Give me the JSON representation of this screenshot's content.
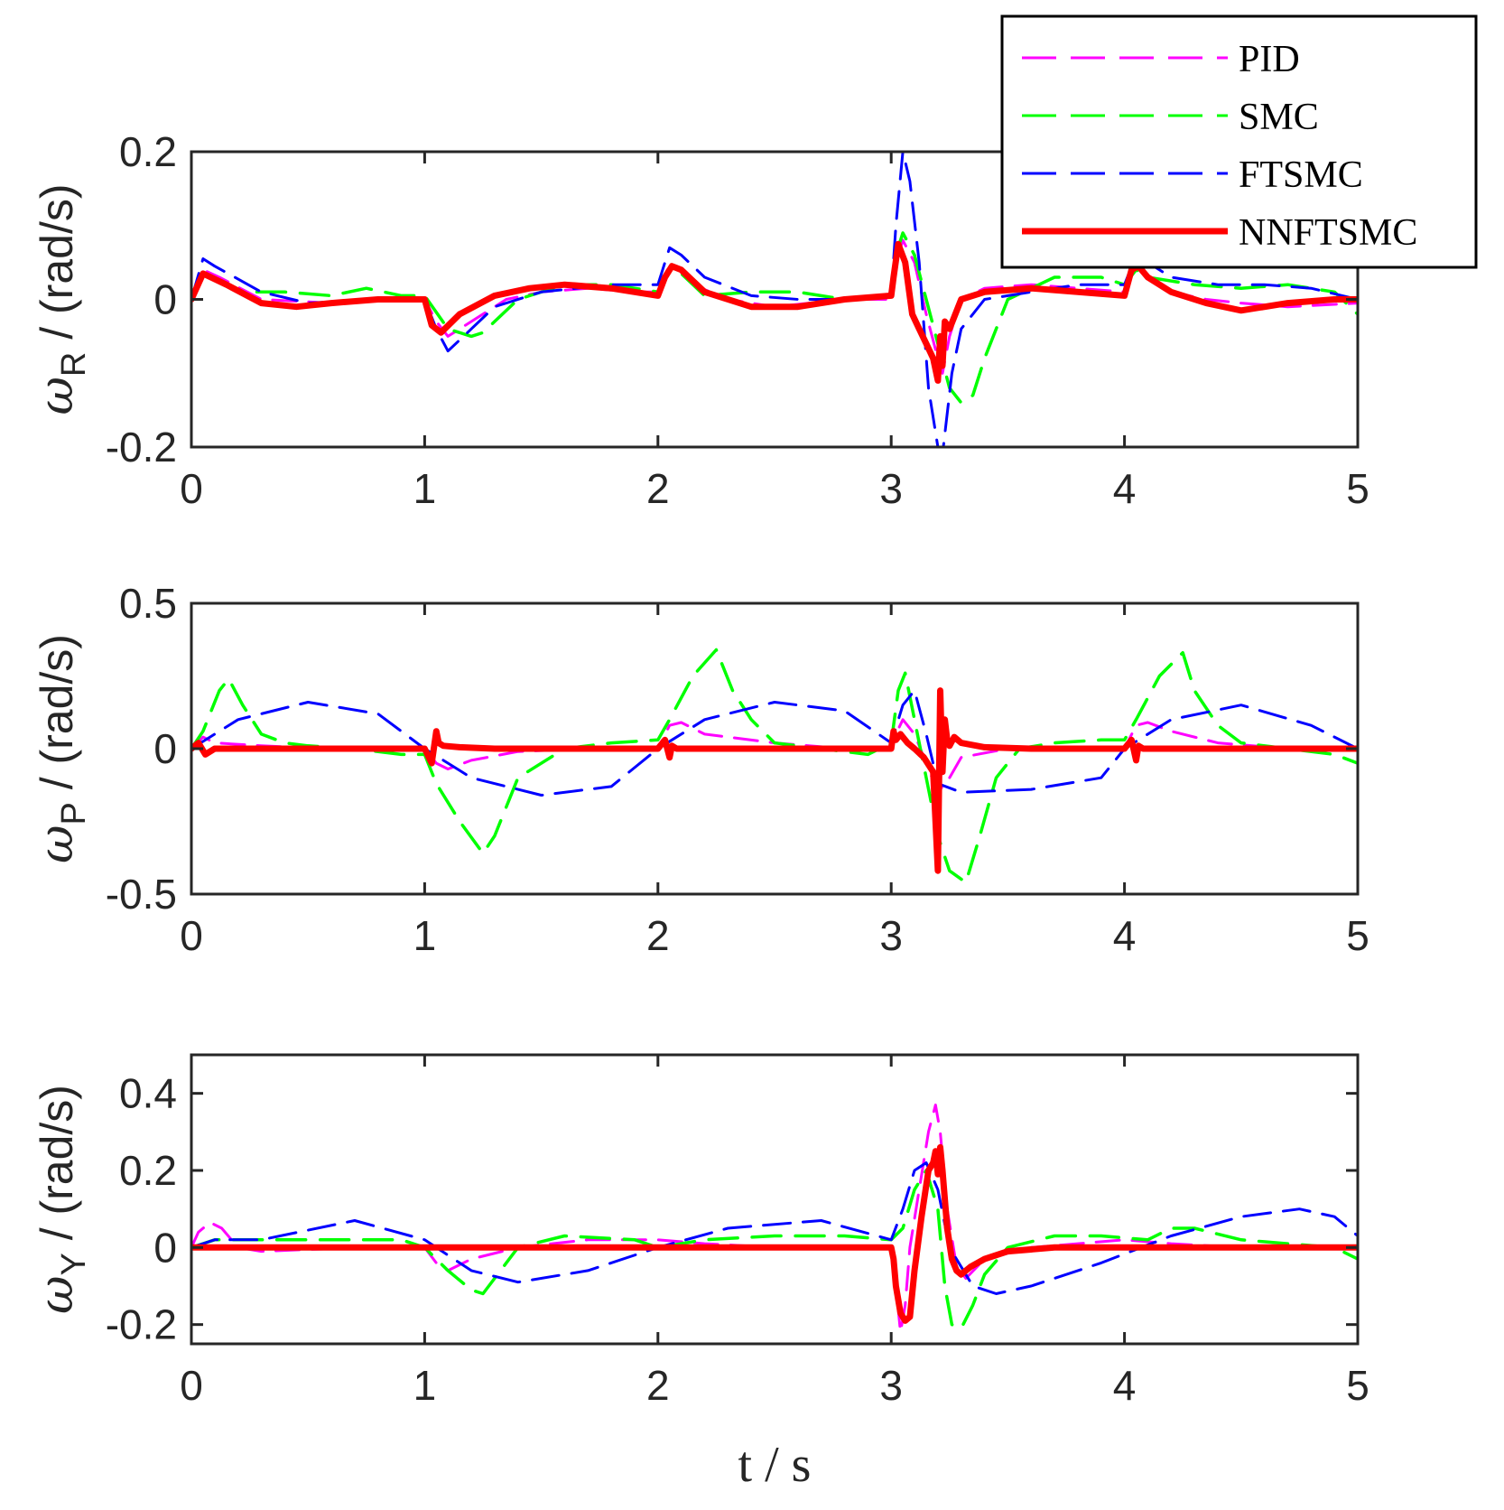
{
  "chart_data": [
    {
      "type": "line",
      "id": "roll",
      "ylabel": {
        "symbol": "ω",
        "sub": "R",
        "unit": " / (rad/s)"
      },
      "xlabel": "",
      "xlim": [
        0,
        5
      ],
      "ylim": [
        -0.2,
        0.2
      ],
      "xticks": [
        0,
        1,
        2,
        3,
        4,
        5
      ],
      "yticks": [
        -0.2,
        0,
        0.2
      ],
      "ytick_labels": [
        "-0.2",
        "0",
        "0.2"
      ],
      "series": [
        {
          "name": "PID",
          "x": [
            0,
            0.05,
            0.12,
            0.3,
            0.6,
            0.9,
            1.0,
            1.05,
            1.1,
            1.2,
            1.35,
            1.5,
            1.7,
            1.9,
            2.0,
            2.04,
            2.08,
            2.15,
            2.3,
            2.5,
            2.8,
            3.0,
            3.02,
            3.05,
            3.1,
            3.15,
            3.2,
            3.22,
            3.25,
            3.3,
            3.4,
            3.6,
            3.8,
            4.0,
            4.05,
            4.1,
            4.2,
            4.35,
            4.5,
            4.7,
            5.0
          ],
          "values": [
            0,
            0.04,
            0.03,
            0.0,
            -0.005,
            0.0,
            0.0,
            -0.03,
            -0.05,
            -0.03,
            0.0,
            0.01,
            0.015,
            0.01,
            0.01,
            0.04,
            0.045,
            0.02,
            0.0,
            -0.01,
            0.0,
            0.0,
            0.05,
            0.08,
            0.05,
            -0.02,
            -0.08,
            -0.1,
            -0.05,
            0.0,
            0.015,
            0.02,
            0.015,
            0.01,
            0.045,
            0.03,
            0.01,
            0.0,
            -0.005,
            -0.01,
            -0.005
          ]
        },
        {
          "name": "SMC",
          "x": [
            0,
            0.05,
            0.2,
            0.4,
            0.6,
            0.75,
            0.9,
            1.0,
            1.1,
            1.2,
            1.25,
            1.3,
            1.4,
            1.6,
            1.8,
            2.0,
            2.05,
            2.1,
            2.2,
            2.4,
            2.6,
            2.8,
            3.0,
            3.02,
            3.05,
            3.1,
            3.15,
            3.2,
            3.25,
            3.3,
            3.35,
            3.4,
            3.5,
            3.7,
            3.9,
            4.0,
            4.05,
            4.1,
            4.3,
            4.5,
            4.7,
            4.9,
            5.0
          ],
          "values": [
            0,
            0.035,
            0.01,
            0.01,
            0.005,
            0.015,
            0.005,
            0.005,
            -0.04,
            -0.05,
            -0.045,
            -0.03,
            0.0,
            0.02,
            0.02,
            0.01,
            0.04,
            0.035,
            0.005,
            0.01,
            0.01,
            0.0,
            0.005,
            0.06,
            0.09,
            0.06,
            0.0,
            -0.06,
            -0.12,
            -0.14,
            -0.13,
            -0.08,
            0.0,
            0.03,
            0.03,
            0.02,
            0.04,
            0.03,
            0.02,
            0.015,
            0.02,
            0.01,
            -0.02
          ]
        },
        {
          "name": "FTSMC",
          "x": [
            0,
            0.05,
            0.1,
            0.3,
            0.5,
            0.8,
            1.0,
            1.05,
            1.1,
            1.2,
            1.3,
            1.5,
            1.8,
            2.0,
            2.05,
            2.1,
            2.2,
            2.4,
            2.6,
            2.8,
            3.0,
            3.02,
            3.05,
            3.08,
            3.12,
            3.16,
            3.2,
            3.22,
            3.26,
            3.3,
            3.4,
            3.6,
            3.8,
            4.0,
            4.05,
            4.1,
            4.2,
            4.4,
            4.6,
            4.8,
            5.0
          ],
          "values": [
            0,
            0.055,
            0.045,
            0.01,
            -0.005,
            0.0,
            0.0,
            -0.04,
            -0.07,
            -0.04,
            -0.01,
            0.01,
            0.02,
            0.02,
            0.07,
            0.06,
            0.03,
            0.005,
            0.0,
            0.0,
            0.005,
            0.1,
            0.2,
            0.16,
            0.05,
            -0.12,
            -0.2,
            -0.21,
            -0.1,
            -0.04,
            0.0,
            0.01,
            0.02,
            0.02,
            0.06,
            0.05,
            0.03,
            0.02,
            0.02,
            0.015,
            0.0
          ]
        },
        {
          "name": "NNFTSMC",
          "x": [
            0,
            0.05,
            0.15,
            0.3,
            0.45,
            0.6,
            0.8,
            1.0,
            1.03,
            1.07,
            1.15,
            1.3,
            1.45,
            1.6,
            1.8,
            2.0,
            2.03,
            2.06,
            2.1,
            2.2,
            2.4,
            2.6,
            2.8,
            3.0,
            3.01,
            3.03,
            3.06,
            3.09,
            3.12,
            3.15,
            3.18,
            3.2,
            3.21,
            3.22,
            3.23,
            3.25,
            3.3,
            3.4,
            3.6,
            3.8,
            4.0,
            4.03,
            4.06,
            4.1,
            4.2,
            4.35,
            4.5,
            4.7,
            4.9,
            5.0
          ],
          "values": [
            0,
            0.035,
            0.02,
            -0.005,
            -0.01,
            -0.005,
            0.0,
            0.0,
            -0.035,
            -0.045,
            -0.02,
            0.005,
            0.015,
            0.02,
            0.015,
            0.005,
            0.03,
            0.045,
            0.04,
            0.01,
            -0.01,
            -0.01,
            0.0,
            0.005,
            0.03,
            0.075,
            0.05,
            -0.02,
            -0.04,
            -0.06,
            -0.08,
            -0.11,
            -0.05,
            -0.09,
            -0.03,
            -0.04,
            0.0,
            0.01,
            0.015,
            0.01,
            0.005,
            0.04,
            0.045,
            0.03,
            0.01,
            -0.005,
            -0.015,
            -0.005,
            0.0,
            0.0
          ]
        }
      ]
    },
    {
      "type": "line",
      "id": "pitch",
      "ylabel": {
        "symbol": "ω",
        "sub": "P",
        "unit": " / (rad/s)"
      },
      "xlabel": "",
      "xlim": [
        0,
        5
      ],
      "ylim": [
        -0.5,
        0.5
      ],
      "xticks": [
        0,
        1,
        2,
        3,
        4,
        5
      ],
      "yticks": [
        -0.5,
        0,
        0.5
      ],
      "ytick_labels": [
        "-0.5",
        "0",
        "0.5"
      ],
      "series": [
        {
          "name": "PID",
          "x": [
            0,
            0.05,
            0.1,
            0.3,
            0.6,
            0.9,
            1.0,
            1.05,
            1.1,
            1.2,
            1.4,
            1.7,
            2.0,
            2.05,
            2.1,
            2.2,
            2.5,
            2.8,
            3.0,
            3.02,
            3.05,
            3.1,
            3.15,
            3.2,
            3.25,
            3.3,
            3.5,
            3.8,
            4.0,
            4.05,
            4.1,
            4.2,
            4.4,
            4.7,
            5.0
          ],
          "values": [
            0,
            0.04,
            0.02,
            0.01,
            0.0,
            0.0,
            0.0,
            -0.05,
            -0.07,
            -0.04,
            -0.01,
            0.0,
            0.0,
            0.08,
            0.09,
            0.05,
            0.02,
            0.0,
            0.0,
            0.05,
            0.1,
            0.05,
            -0.05,
            -0.15,
            -0.1,
            -0.03,
            0.0,
            0.0,
            0.0,
            0.08,
            0.09,
            0.06,
            0.02,
            0.0,
            0.0
          ]
        },
        {
          "name": "SMC",
          "x": [
            0,
            0.05,
            0.12,
            0.16,
            0.22,
            0.3,
            0.4,
            0.5,
            0.7,
            0.9,
            1.0,
            1.05,
            1.15,
            1.25,
            1.3,
            1.4,
            1.6,
            1.8,
            2.0,
            2.05,
            2.15,
            2.25,
            2.32,
            2.4,
            2.5,
            2.7,
            2.9,
            3.0,
            3.03,
            3.06,
            3.1,
            3.15,
            3.2,
            3.25,
            3.32,
            3.38,
            3.45,
            3.55,
            3.7,
            3.9,
            4.0,
            4.05,
            4.15,
            4.25,
            4.3,
            4.4,
            4.5,
            4.7,
            4.9,
            5.0
          ],
          "values": [
            0,
            0.06,
            0.2,
            0.24,
            0.15,
            0.05,
            0.02,
            0.01,
            0.0,
            -0.02,
            -0.02,
            -0.12,
            -0.25,
            -0.36,
            -0.3,
            -0.1,
            0.0,
            0.02,
            0.03,
            0.1,
            0.25,
            0.34,
            0.2,
            0.1,
            0.02,
            0.0,
            -0.02,
            0.02,
            0.2,
            0.26,
            0.1,
            -0.1,
            -0.3,
            -0.42,
            -0.46,
            -0.3,
            -0.1,
            0.0,
            0.02,
            0.03,
            0.03,
            0.1,
            0.25,
            0.33,
            0.2,
            0.08,
            0.02,
            0.0,
            -0.02,
            -0.05
          ]
        },
        {
          "name": "FTSMC",
          "x": [
            0,
            0.2,
            0.5,
            0.8,
            1.0,
            1.2,
            1.5,
            1.8,
            2.0,
            2.2,
            2.5,
            2.8,
            3.0,
            3.05,
            3.1,
            3.15,
            3.2,
            3.3,
            3.6,
            3.9,
            4.0,
            4.2,
            4.5,
            4.8,
            5.0
          ],
          "values": [
            0,
            0.1,
            0.16,
            0.12,
            0.0,
            -0.1,
            -0.16,
            -0.13,
            0.0,
            0.1,
            0.16,
            0.13,
            0.02,
            0.15,
            0.2,
            0.05,
            -0.12,
            -0.15,
            -0.14,
            -0.1,
            0.0,
            0.1,
            0.15,
            0.08,
            0.0
          ]
        },
        {
          "name": "NNFTSMC",
          "x": [
            0,
            0.03,
            0.06,
            0.1,
            0.5,
            1.0,
            1.03,
            1.05,
            1.06,
            1.08,
            1.15,
            1.3,
            1.6,
            2.0,
            2.03,
            2.05,
            2.06,
            2.08,
            2.2,
            2.6,
            3.0,
            3.01,
            3.02,
            3.04,
            3.07,
            3.1,
            3.14,
            3.18,
            3.2,
            3.21,
            3.22,
            3.23,
            3.24,
            3.25,
            3.27,
            3.3,
            3.4,
            3.6,
            4.0,
            4.03,
            4.05,
            4.06,
            4.08,
            4.2,
            4.6,
            5.0
          ],
          "values": [
            0,
            0.02,
            -0.02,
            0.0,
            0.0,
            0.0,
            -0.05,
            0.06,
            0.02,
            0.01,
            0.005,
            0.0,
            0.0,
            0.0,
            0.03,
            -0.03,
            0.01,
            0.0,
            0.0,
            0.0,
            0.0,
            0.06,
            0.03,
            0.05,
            0.02,
            0.0,
            -0.03,
            -0.08,
            -0.42,
            0.2,
            -0.08,
            0.1,
            0.03,
            0.01,
            0.04,
            0.02,
            0.005,
            0.0,
            0.0,
            0.03,
            -0.04,
            0.01,
            0.0,
            0.0,
            0.0,
            0.0
          ]
        }
      ]
    },
    {
      "type": "line",
      "id": "yaw",
      "ylabel": {
        "symbol": "ω",
        "sub": "Y",
        "unit": " / (rad/s)"
      },
      "xlabel": "t / s",
      "xlim": [
        0,
        5
      ],
      "ylim": [
        -0.25,
        0.5
      ],
      "xticks": [
        0,
        1,
        2,
        3,
        4,
        5
      ],
      "yticks": [
        -0.2,
        0,
        0.2,
        0.4
      ],
      "ytick_labels": [
        "-0.2",
        "0",
        "0.2",
        "0.4"
      ],
      "series": [
        {
          "name": "PID",
          "x": [
            0,
            0.03,
            0.08,
            0.13,
            0.2,
            0.3,
            0.5,
            0.8,
            1.0,
            1.05,
            1.1,
            1.2,
            1.4,
            1.7,
            2.0,
            2.2,
            2.5,
            2.8,
            3.0,
            3.02,
            3.04,
            3.06,
            3.08,
            3.12,
            3.16,
            3.19,
            3.21,
            3.24,
            3.28,
            3.32,
            3.4,
            3.6,
            3.8,
            4.0,
            4.2,
            4.5,
            4.8,
            5.0
          ],
          "values": [
            0,
            0.04,
            0.065,
            0.05,
            0.0,
            -0.01,
            -0.005,
            0.0,
            0.0,
            -0.04,
            -0.06,
            -0.03,
            0.0,
            0.02,
            0.02,
            0.01,
            0.0,
            0.0,
            0.0,
            -0.1,
            -0.22,
            -0.15,
            0.0,
            0.15,
            0.3,
            0.37,
            0.3,
            0.1,
            -0.05,
            -0.08,
            -0.03,
            0.0,
            0.01,
            0.02,
            0.01,
            0.0,
            0.0,
            0.0
          ]
        },
        {
          "name": "SMC",
          "x": [
            0,
            0.1,
            0.3,
            0.6,
            0.9,
            1.0,
            1.1,
            1.2,
            1.25,
            1.3,
            1.4,
            1.6,
            1.9,
            2.0,
            2.2,
            2.5,
            2.8,
            3.0,
            3.05,
            3.1,
            3.15,
            3.2,
            3.23,
            3.26,
            3.3,
            3.35,
            3.4,
            3.5,
            3.7,
            3.9,
            4.1,
            4.2,
            4.3,
            4.5,
            4.7,
            4.9,
            5.0
          ],
          "values": [
            0,
            0.02,
            0.02,
            0.02,
            0.02,
            0.0,
            -0.06,
            -0.11,
            -0.12,
            -0.08,
            0.0,
            0.03,
            0.02,
            0.0,
            0.02,
            0.03,
            0.03,
            0.02,
            0.05,
            0.15,
            0.2,
            0.1,
            -0.1,
            -0.2,
            -0.21,
            -0.15,
            -0.07,
            0.0,
            0.03,
            0.03,
            0.02,
            0.05,
            0.05,
            0.02,
            0.01,
            0.0,
            -0.03
          ]
        },
        {
          "name": "FTSMC",
          "x": [
            0,
            0.1,
            0.3,
            0.7,
            1.0,
            1.2,
            1.4,
            1.7,
            2.0,
            2.3,
            2.7,
            3.0,
            3.05,
            3.1,
            3.15,
            3.2,
            3.25,
            3.3,
            3.35,
            3.45,
            3.6,
            3.9,
            4.2,
            4.5,
            4.75,
            4.9,
            5.0
          ],
          "values": [
            0,
            0.02,
            0.02,
            0.07,
            0.02,
            -0.06,
            -0.09,
            -0.06,
            0.0,
            0.05,
            0.07,
            0.02,
            0.1,
            0.2,
            0.22,
            0.15,
            0.0,
            -0.05,
            -0.1,
            -0.12,
            -0.1,
            -0.04,
            0.03,
            0.08,
            0.1,
            0.08,
            0.03
          ]
        },
        {
          "name": "NNFTSMC",
          "x": [
            0,
            0.5,
            1.0,
            1.5,
            2.0,
            2.5,
            3.0,
            3.01,
            3.02,
            3.04,
            3.06,
            3.08,
            3.1,
            3.13,
            3.16,
            3.18,
            3.19,
            3.2,
            3.21,
            3.22,
            3.24,
            3.26,
            3.28,
            3.3,
            3.34,
            3.4,
            3.5,
            3.7,
            4.0,
            4.5,
            5.0
          ],
          "values": [
            0,
            0.0,
            0.0,
            0.0,
            0.0,
            0.0,
            0.0,
            -0.03,
            -0.1,
            -0.17,
            -0.19,
            -0.18,
            -0.06,
            0.08,
            0.2,
            0.22,
            0.25,
            0.19,
            0.26,
            0.2,
            0.05,
            -0.03,
            -0.06,
            -0.07,
            -0.05,
            -0.03,
            -0.01,
            0.0,
            0.0,
            0.0,
            0.0
          ]
        }
      ]
    }
  ],
  "legend": {
    "placement": "top-right",
    "entries": [
      {
        "label": "PID",
        "color": "#ff00ff",
        "style": "dashed"
      },
      {
        "label": "SMC",
        "color": "#00ff00",
        "style": "dashed"
      },
      {
        "label": "FTSMC",
        "color": "#0000ff",
        "style": "dashed"
      },
      {
        "label": "NNFTSMC",
        "color": "#ff0000",
        "style": "solid"
      }
    ]
  },
  "colors": {
    "PID": "#ff00ff",
    "SMC": "#00ff00",
    "FTSMC": "#0000ff",
    "NNFTSMC": "#ff0000"
  }
}
